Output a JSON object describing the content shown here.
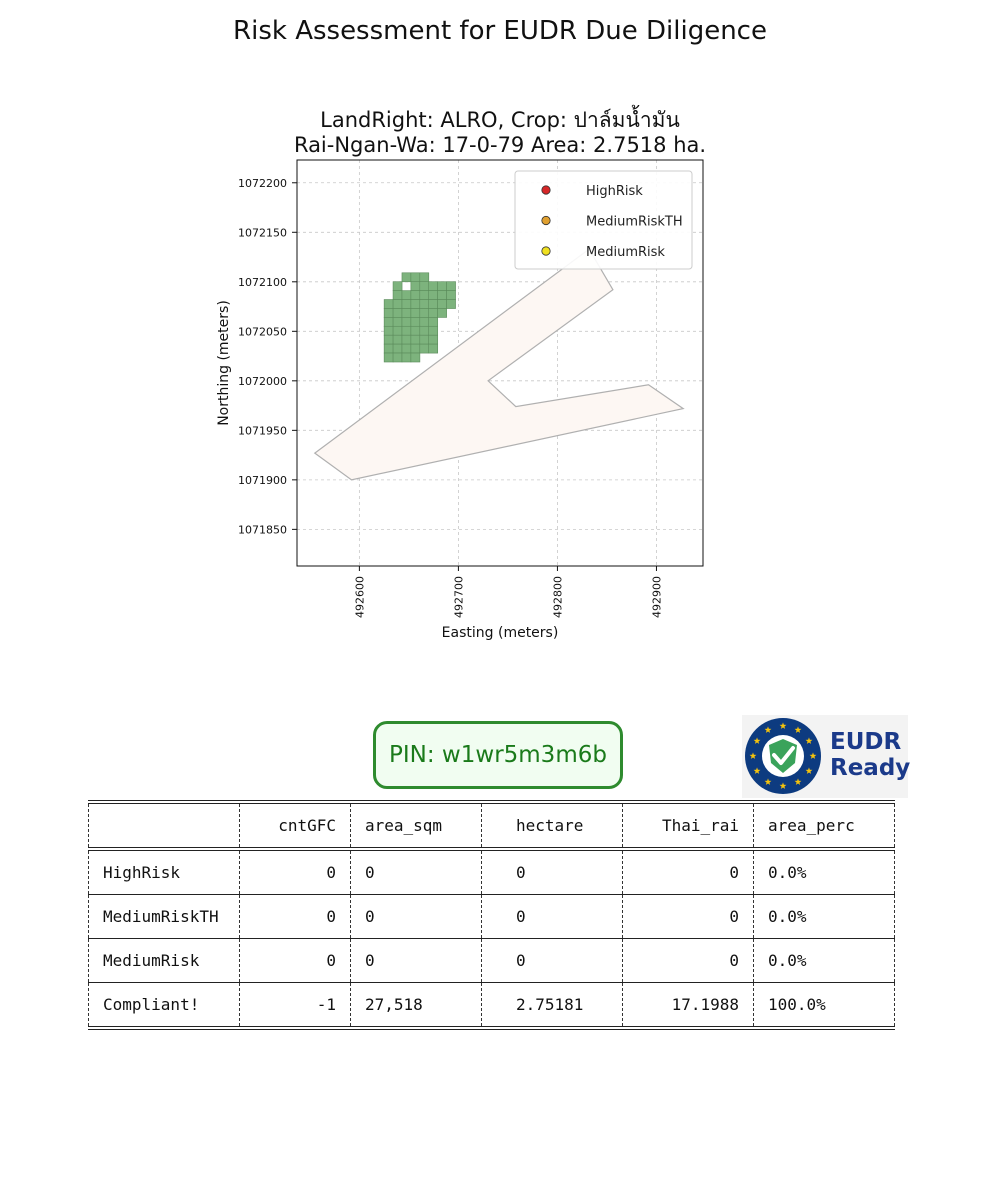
{
  "page_title": "Risk Assessment for EUDR Due Diligence",
  "pin": "PIN: w1wr5m3m6b",
  "badge": {
    "line1": "EUDR",
    "line2": "Ready",
    "colors": {
      "navy": "#0d3b80",
      "gold": "#f4c20d",
      "green": "#3aa35b"
    }
  },
  "chart_data": {
    "type": "map",
    "title_line1": "LandRight: ALRO,  Crop: ปาล์มน้ำมัน",
    "title_line2": "Rai-Ngan-Wa: 17-0-79    Area: 2.7518 ha.",
    "xlabel": "Easting (meters)",
    "ylabel": "Northing (meters)",
    "xlim": [
      492537,
      492947
    ],
    "ylim": [
      1071813,
      1072223
    ],
    "xticks": [
      492600,
      492700,
      492800,
      492900
    ],
    "yticks": [
      1071850,
      1071900,
      1071950,
      1072000,
      1072050,
      1072100,
      1072150,
      1072200
    ],
    "grid": true,
    "legend": {
      "placement": "top-right",
      "entries": [
        {
          "label": "HighRisk",
          "color": "#d62728"
        },
        {
          "label": "MediumRiskTH",
          "color": "#e0a030"
        },
        {
          "label": "MediumRisk",
          "color": "#f0e020"
        }
      ]
    },
    "parcel_polygon": {
      "fill": "#fdf7f3",
      "stroke": "#b0b0b0",
      "points": [
        [
          492555,
          1071927
        ],
        [
          492592,
          1071900
        ],
        [
          492927,
          1071972
        ],
        [
          492892,
          1071996
        ],
        [
          492758,
          1071974
        ],
        [
          492730,
          1072000
        ],
        [
          492856,
          1072092
        ],
        [
          492832,
          1072133
        ],
        [
          492555,
          1071927
        ]
      ]
    },
    "grid_cells": {
      "fill": "#7db37d",
      "stroke": "#5a8a5a",
      "cell_size": 9.1,
      "rows": [
        {
          "y": 1072100,
          "x": [
            492643,
            492652,
            492661
          ]
        },
        {
          "y": 1072091,
          "x": [
            492634,
            492652,
            492661,
            492670,
            492679,
            492688
          ]
        },
        {
          "y": 1072082,
          "x": [
            492634,
            492643,
            492652,
            492661,
            492670,
            492679,
            492688
          ]
        },
        {
          "y": 1072073,
          "x": [
            492625,
            492634,
            492643,
            492652,
            492661,
            492670,
            492679,
            492688
          ]
        },
        {
          "y": 1072064,
          "x": [
            492625,
            492634,
            492643,
            492652,
            492661,
            492670,
            492679
          ]
        },
        {
          "y": 1072055,
          "x": [
            492625,
            492634,
            492643,
            492652,
            492661,
            492670
          ]
        },
        {
          "y": 1072046,
          "x": [
            492625,
            492634,
            492643,
            492652,
            492661,
            492670
          ]
        },
        {
          "y": 1072037,
          "x": [
            492625,
            492634,
            492643,
            492652,
            492661,
            492670
          ]
        },
        {
          "y": 1072028,
          "x": [
            492625,
            492634,
            492643,
            492652,
            492661,
            492670
          ]
        },
        {
          "y": 1072019,
          "x": [
            492625,
            492634,
            492643,
            492652
          ]
        }
      ]
    }
  },
  "table": {
    "headers": [
      "",
      "cntGFC",
      "area_sqm",
      "hectare",
      "Thai_rai",
      "area_perc"
    ],
    "rows": [
      [
        "HighRisk",
        "0",
        "0",
        "0",
        "0",
        "0.0%"
      ],
      [
        "MediumRiskTH",
        "0",
        "0",
        "0",
        "0",
        "0.0%"
      ],
      [
        "MediumRisk",
        "0",
        "0",
        "0",
        "0",
        "0.0%"
      ],
      [
        "Compliant!",
        "-1",
        "27,518",
        "2.75181",
        "17.1988",
        "100.0%"
      ]
    ]
  }
}
